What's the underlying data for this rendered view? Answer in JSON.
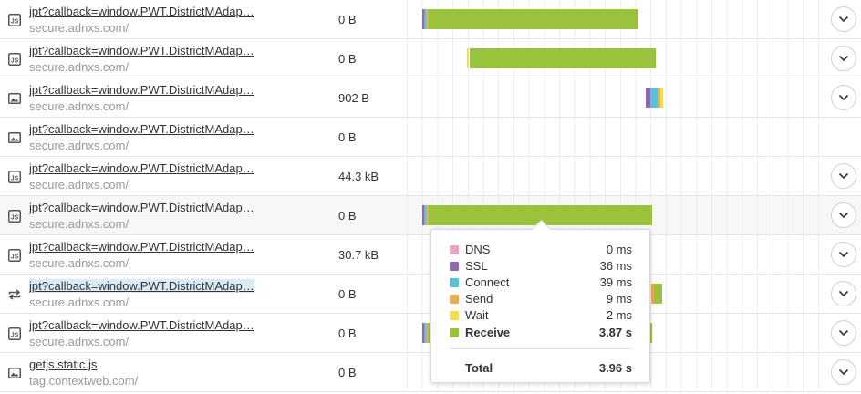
{
  "rows": [
    {
      "name": "jpt?callback=window.PWT.DistrictMAdap…",
      "host": "secure.adnxs.com/",
      "size": "0 B",
      "icon": "js-icon",
      "selected": false,
      "highlight": false,
      "expand": true
    },
    {
      "name": "jpt?callback=window.PWT.DistrictMAdap…",
      "host": "secure.adnxs.com/",
      "size": "0 B",
      "icon": "js-icon",
      "selected": false,
      "highlight": false,
      "expand": true
    },
    {
      "name": "jpt?callback=window.PWT.DistrictMAdap…",
      "host": "secure.adnxs.com/",
      "size": "902 B",
      "icon": "image-icon",
      "selected": false,
      "highlight": false,
      "expand": true
    },
    {
      "name": "jpt?callback=window.PWT.DistrictMAdap…",
      "host": "secure.adnxs.com/",
      "size": "0 B",
      "icon": "image-icon",
      "selected": false,
      "highlight": false,
      "expand": false
    },
    {
      "name": "jpt?callback=window.PWT.DistrictMAdap…",
      "host": "secure.adnxs.com/",
      "size": "44.3 kB",
      "icon": "js-icon",
      "selected": false,
      "highlight": false,
      "expand": true
    },
    {
      "name": "jpt?callback=window.PWT.DistrictMAdap…",
      "host": "secure.adnxs.com/",
      "size": "0 B",
      "icon": "js-icon",
      "selected": false,
      "highlight": true,
      "expand": true
    },
    {
      "name": "jpt?callback=window.PWT.DistrictMAdap…",
      "host": "secure.adnxs.com/",
      "size": "30.7 kB",
      "icon": "js-icon",
      "selected": false,
      "highlight": false,
      "expand": true
    },
    {
      "name": "jpt?callback=window.PWT.DistrictMAdap…",
      "host": "secure.adnxs.com/",
      "size": "0 B",
      "icon": "redirect-icon",
      "selected": true,
      "highlight": false,
      "expand": true
    },
    {
      "name": "jpt?callback=window.PWT.DistrictMAdap…",
      "host": "secure.adnxs.com/",
      "size": "0 B",
      "icon": "js-icon",
      "selected": false,
      "highlight": false,
      "expand": true
    },
    {
      "name": "getjs.static.js",
      "host": "tag.contextweb.com/",
      "size": "0 B",
      "icon": "image-icon",
      "selected": false,
      "highlight": false,
      "expand": true
    }
  ],
  "tooltip": {
    "items": [
      {
        "label": "DNS",
        "value": "0 ms",
        "color": "#e9a3c9",
        "bold": false
      },
      {
        "label": "SSL",
        "value": "36 ms",
        "color": "#8e6bb0",
        "bold": false
      },
      {
        "label": "Connect",
        "value": "39 ms",
        "color": "#5bc0d6",
        "bold": false
      },
      {
        "label": "Send",
        "value": "9 ms",
        "color": "#e8ac55",
        "bold": false
      },
      {
        "label": "Wait",
        "value": "2 ms",
        "color": "#f2dd4a",
        "bold": false
      },
      {
        "label": "Receive",
        "value": "3.87 s",
        "color": "#9bc23c",
        "bold": true
      }
    ],
    "total_label": "Total",
    "total_value": "3.96 s"
  },
  "colors": {
    "dns": "#e9a3c9",
    "ssl": "#8e6bb0",
    "connect": "#5bc0d6",
    "send": "#e8ac55",
    "wait": "#f2dd4a",
    "receive": "#9bc23c"
  }
}
